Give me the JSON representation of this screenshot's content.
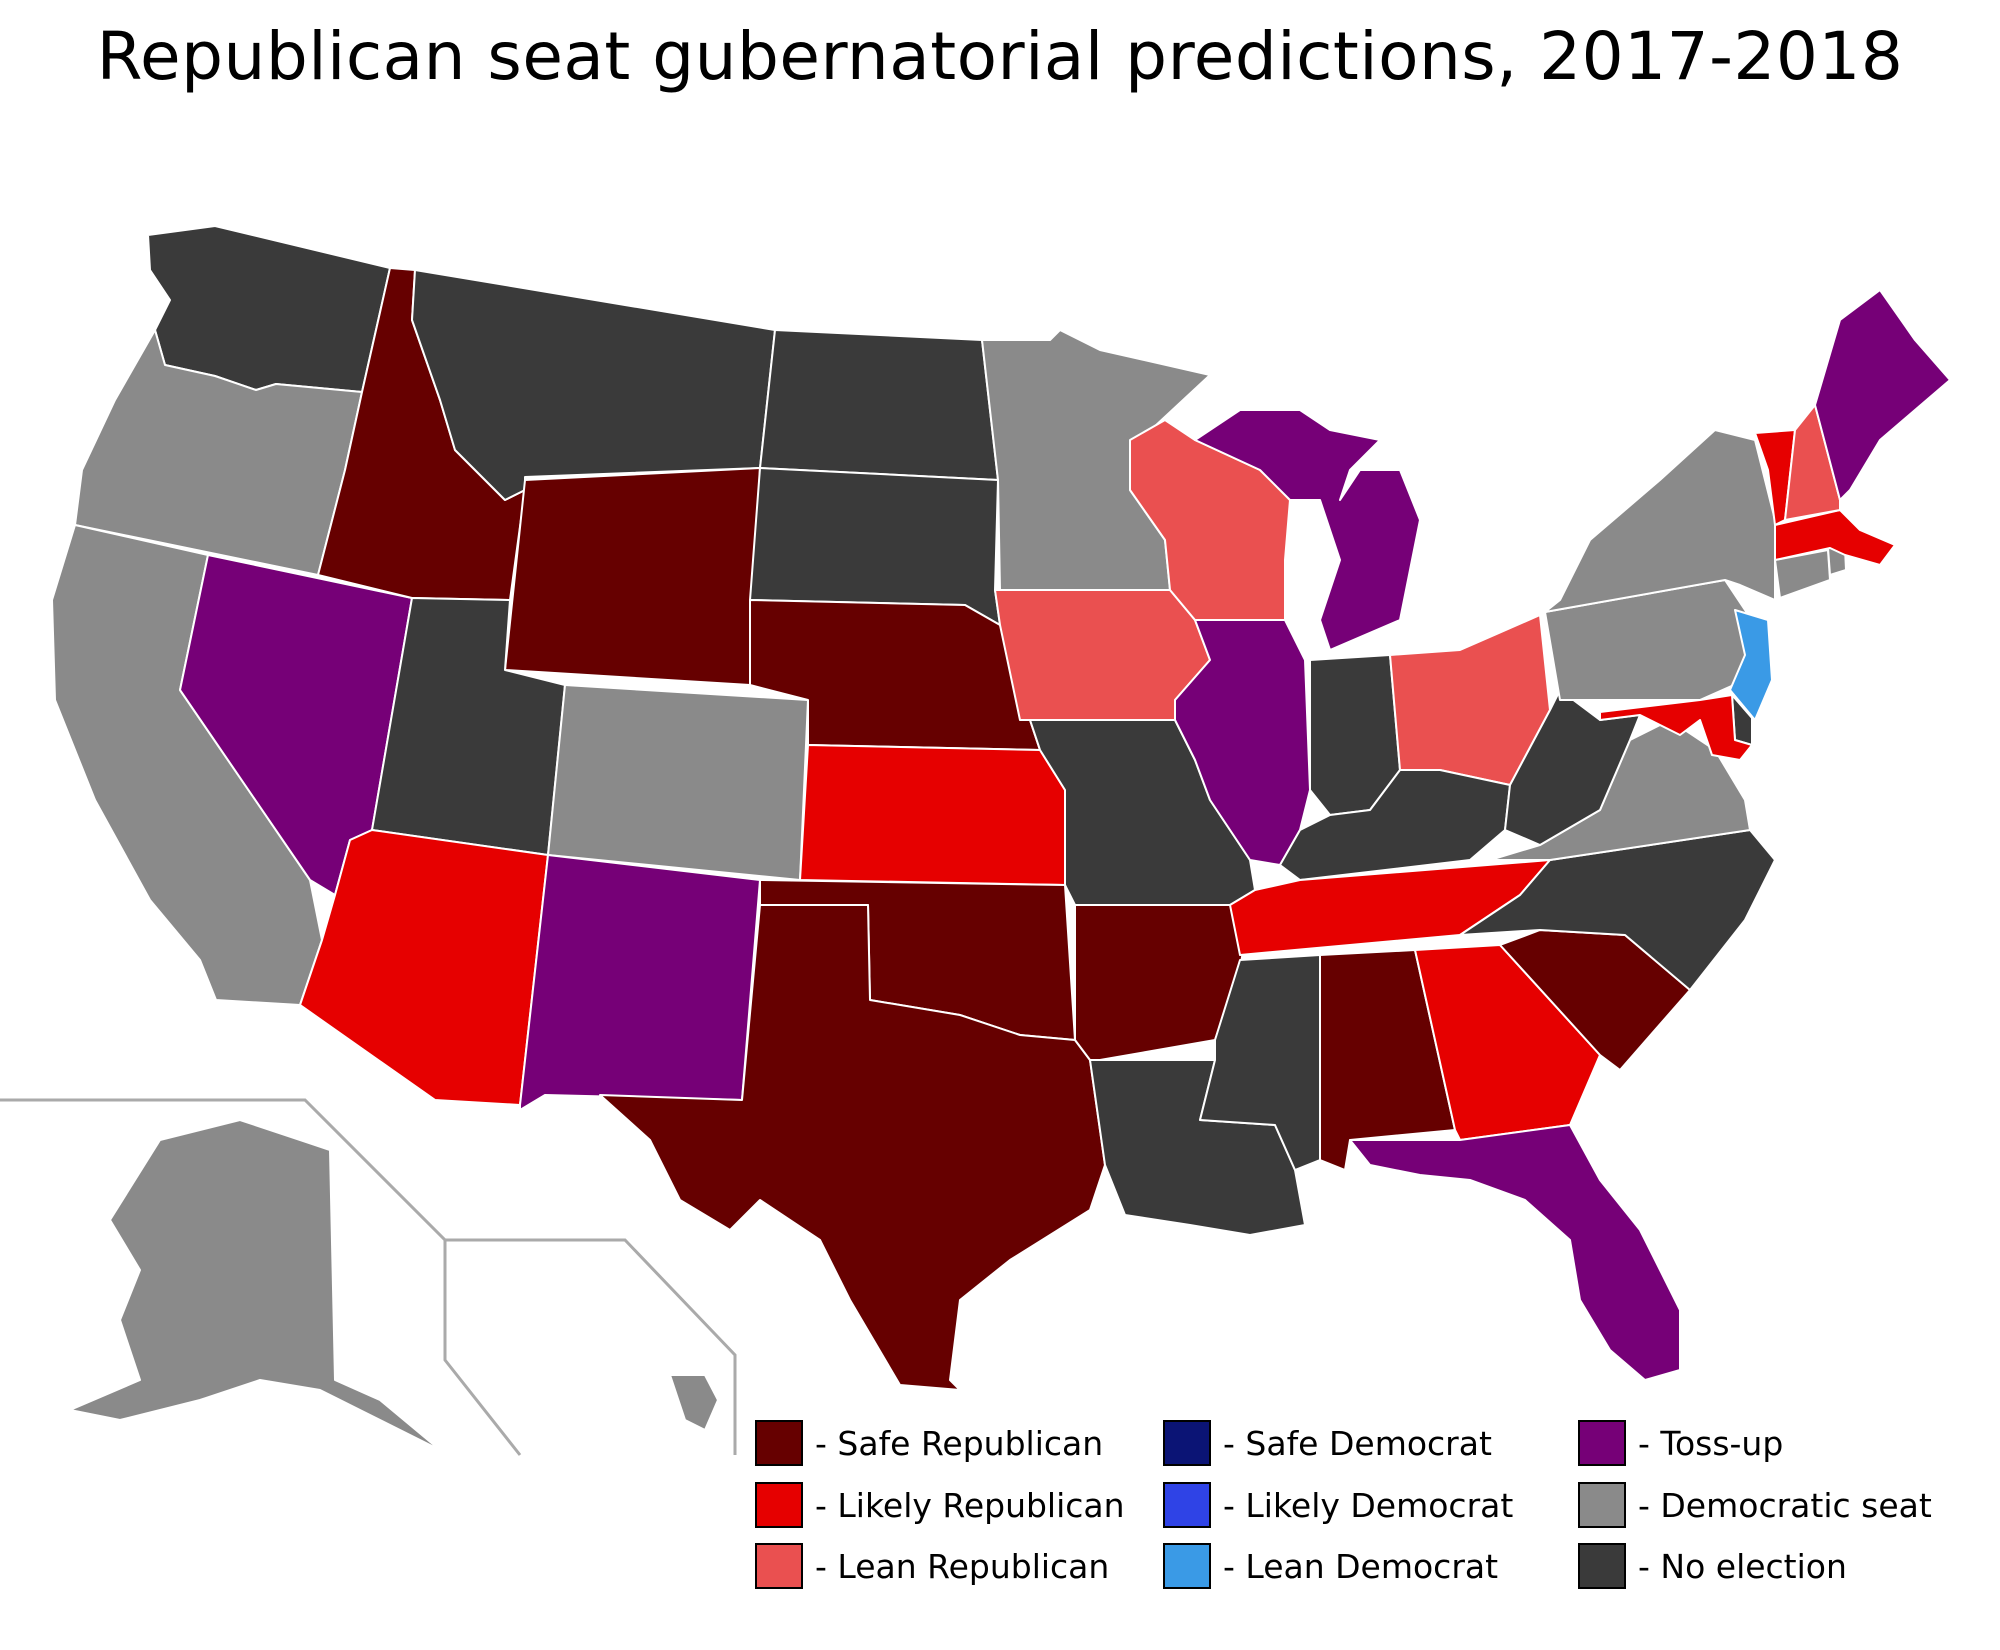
{
  "title": "Republican seat gubernatorial predictions, 2017-2018",
  "colors": {
    "safe_republican": "#660000",
    "likely_republican": "#e60000",
    "lean_republican": "#ea5050",
    "safe_democrat": "#0b1475",
    "likely_democrat": "#2f43e6",
    "lean_democrat": "#3a9ae6",
    "tossup": "#760077",
    "democratic_seat": "#8a8a8a",
    "no_election": "#3a3a3a"
  },
  "legend": [
    {
      "key": "safe_republican",
      "label": "- Safe Republican"
    },
    {
      "key": "likely_republican",
      "label": "- Likely Republican"
    },
    {
      "key": "lean_republican",
      "label": "- Lean Republican"
    },
    {
      "key": "safe_democrat",
      "label": "- Safe Democrat"
    },
    {
      "key": "likely_democrat",
      "label": "- Likely Democrat"
    },
    {
      "key": "lean_democrat",
      "label": "- Lean Democrat"
    },
    {
      "key": "tossup",
      "label": "- Toss-up"
    },
    {
      "key": "democratic_seat",
      "label": "- Democratic seat"
    },
    {
      "key": "no_election",
      "label": "- No election"
    }
  ],
  "states": {
    "WA": "no_election",
    "OR": "democratic_seat",
    "CA": "democratic_seat",
    "NV": "tossup",
    "ID": "safe_republican",
    "MT": "no_election",
    "WY": "safe_republican",
    "UT": "no_election",
    "AZ": "likely_republican",
    "CO": "democratic_seat",
    "NM": "tossup",
    "ND": "no_election",
    "SD": "no_election",
    "NE": "safe_republican",
    "KS": "likely_republican",
    "OK": "safe_republican",
    "TX": "safe_republican",
    "MN": "democratic_seat",
    "IA": "lean_republican",
    "MO": "no_election",
    "AR": "safe_republican",
    "LA": "no_election",
    "WI": "lean_republican",
    "IL": "tossup",
    "MI": "tossup",
    "IN": "no_election",
    "OH": "lean_republican",
    "KY": "no_election",
    "TN": "likely_republican",
    "MS": "no_election",
    "AL": "safe_republican",
    "GA": "likely_republican",
    "FL": "tossup",
    "SC": "safe_republican",
    "NC": "no_election",
    "VA": "democratic_seat",
    "WV": "no_election",
    "PA": "democratic_seat",
    "NY": "democratic_seat",
    "NJ": "lean_democrat",
    "DE": "no_election",
    "MD": "likely_republican",
    "CT": "democratic_seat",
    "RI": "democratic_seat",
    "MA": "likely_republican",
    "VT": "likely_republican",
    "NH": "lean_republican",
    "ME": "tossup",
    "AK": "democratic_seat",
    "HI": "democratic_seat"
  }
}
